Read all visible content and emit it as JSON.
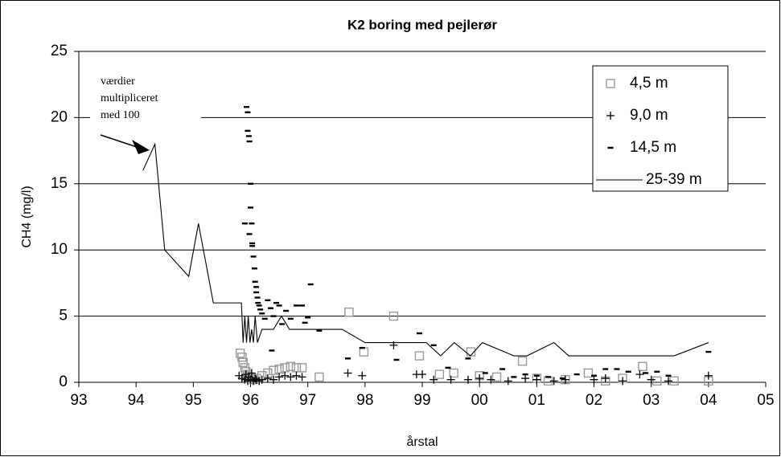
{
  "chart_data": {
    "type": "scatter",
    "title": "K2 boring med pejlerør",
    "xlabel": "årstal",
    "ylabel": "CH4 (mg/l)",
    "annotation": [
      "værdier",
      "multipliceret",
      "med 100"
    ],
    "xlim": [
      93,
      105
    ],
    "xticks": [
      93,
      94,
      95,
      96,
      97,
      98,
      99,
      {
        "value": 100,
        "label": "00"
      },
      {
        "value": 101,
        "label": "01"
      },
      {
        "value": 102,
        "label": "02"
      },
      {
        "value": 103,
        "label": "03"
      },
      {
        "value": 104,
        "label": "04"
      },
      {
        "value": 105,
        "label": "05"
      }
    ],
    "ylim": [
      0,
      25
    ],
    "yticks": [
      0,
      5,
      10,
      15,
      20,
      25
    ],
    "grid": true,
    "legend": "top-right",
    "series": [
      {
        "name": "4,5 m",
        "marker": "square",
        "color": "#999999",
        "x": [
          95.82,
          95.85,
          95.87,
          95.9,
          95.92,
          95.95,
          95.97,
          96.0,
          96.05,
          96.1,
          96.2,
          96.3,
          96.4,
          96.5,
          96.6,
          96.7,
          96.8,
          96.9,
          97.2,
          97.72,
          97.98,
          98.5,
          98.95,
          99.3,
          99.55,
          99.85,
          100.0,
          100.3,
          100.75,
          101.0,
          101.2,
          101.5,
          101.9,
          102.2,
          102.5,
          102.85,
          103.1,
          103.4,
          104.0
        ],
        "values": [
          2.2,
          1.9,
          1.5,
          1.1,
          0.8,
          0.6,
          0.4,
          0.3,
          0.2,
          0.3,
          0.5,
          0.7,
          0.9,
          1.0,
          1.1,
          1.2,
          1.1,
          1.1,
          0.4,
          5.3,
          2.3,
          5.0,
          2.0,
          0.6,
          0.7,
          2.3,
          0.5,
          0.4,
          1.6,
          0.3,
          0.1,
          0.2,
          0.7,
          0.1,
          0.3,
          1.2,
          0.1,
          0.1,
          0.1
        ]
      },
      {
        "name": "9,0 m",
        "marker": "plus",
        "color": "#000000",
        "x": [
          95.8,
          95.85,
          95.9,
          95.92,
          95.95,
          95.97,
          96.0,
          96.02,
          96.05,
          96.08,
          96.1,
          96.15,
          96.2,
          96.3,
          96.4,
          96.5,
          96.6,
          96.7,
          96.8,
          96.9,
          97.7,
          97.95,
          98.5,
          98.9,
          99.0,
          99.2,
          99.5,
          99.8,
          100.0,
          100.2,
          100.5,
          100.8,
          101.0,
          101.3,
          101.5,
          102.0,
          102.2,
          102.5,
          102.8,
          103.0,
          103.3,
          104.0
        ],
        "values": [
          0.5,
          0.3,
          0.2,
          0.6,
          0.1,
          0.4,
          0.2,
          0.7,
          0.1,
          0.3,
          0.2,
          0.1,
          0.2,
          0.3,
          0.2,
          0.4,
          0.5,
          0.4,
          0.5,
          0.4,
          0.7,
          0.5,
          2.8,
          0.6,
          0.6,
          0.2,
          0.2,
          0.2,
          0.3,
          0.2,
          0.1,
          0.3,
          0.2,
          0.1,
          0.2,
          0.2,
          0.3,
          0.1,
          0.6,
          0.2,
          0.1,
          0.5
        ]
      },
      {
        "name": "14,5 m",
        "marker": "dash",
        "color": "#000000",
        "x": [
          95.93,
          95.95,
          95.95,
          95.97,
          95.98,
          96.0,
          96.0,
          96.02,
          95.9,
          95.98,
          96.03,
          96.03,
          96.05,
          96.07,
          96.08,
          96.1,
          96.1,
          96.12,
          96.13,
          96.15,
          96.17,
          96.2,
          96.37,
          96.25,
          96.3,
          96.35,
          96.4,
          96.45,
          96.5,
          96.55,
          96.62,
          96.7,
          96.8,
          96.9,
          96.95,
          97.0,
          97.05,
          97.2,
          97.7,
          97.95,
          98.55,
          98.95,
          99.2,
          99.45,
          99.8,
          100.1,
          100.4,
          100.6,
          100.8,
          101.0,
          101.2,
          101.45,
          101.7,
          102.0,
          102.2,
          102.4,
          102.6,
          102.9,
          103.1,
          103.3,
          104.0
        ],
        "values": [
          20.8,
          20.4,
          19,
          18.6,
          18.2,
          15,
          13.2,
          12,
          12,
          11.2,
          10.5,
          10.3,
          9.5,
          8.6,
          7.6,
          7.2,
          6.8,
          6.4,
          6,
          5.8,
          5.5,
          5.2,
          2.4,
          4.8,
          6.2,
          5.6,
          5,
          6,
          5.8,
          4.4,
          5.4,
          4.8,
          5.8,
          5.8,
          4.5,
          4.9,
          7.4,
          3.9,
          1.8,
          2.6,
          1.7,
          3.7,
          2.8,
          1.1,
          1.8,
          0.7,
          1,
          0.4,
          0.6,
          0.5,
          0.4,
          0.3,
          0.6,
          0.5,
          1,
          1,
          0.8,
          0.7,
          0.8,
          0.5,
          2.3
        ]
      },
      {
        "name": "25-39 m",
        "marker": "line",
        "color": "#000000",
        "x": [
          94.12,
          94.33,
          94.5,
          94.92,
          95.09,
          95.35,
          95.84,
          95.87,
          95.9,
          95.93,
          95.96,
          95.99,
          96.02,
          96.05,
          96.08,
          96.12,
          96.2,
          96.4,
          96.54,
          96.68,
          97.03,
          97.6,
          98.0,
          99.07,
          99.32,
          99.56,
          99.84,
          100.05,
          100.6,
          100.83,
          101.3,
          101.56,
          103.4,
          104.0
        ],
        "values": [
          16,
          18,
          10,
          8,
          12,
          6,
          6,
          3,
          5,
          3,
          5,
          3,
          4,
          3,
          5,
          3,
          4,
          4,
          5,
          4,
          4,
          4,
          3,
          3,
          2,
          3,
          2,
          3,
          2,
          2,
          3,
          2,
          2,
          3
        ]
      }
    ]
  }
}
